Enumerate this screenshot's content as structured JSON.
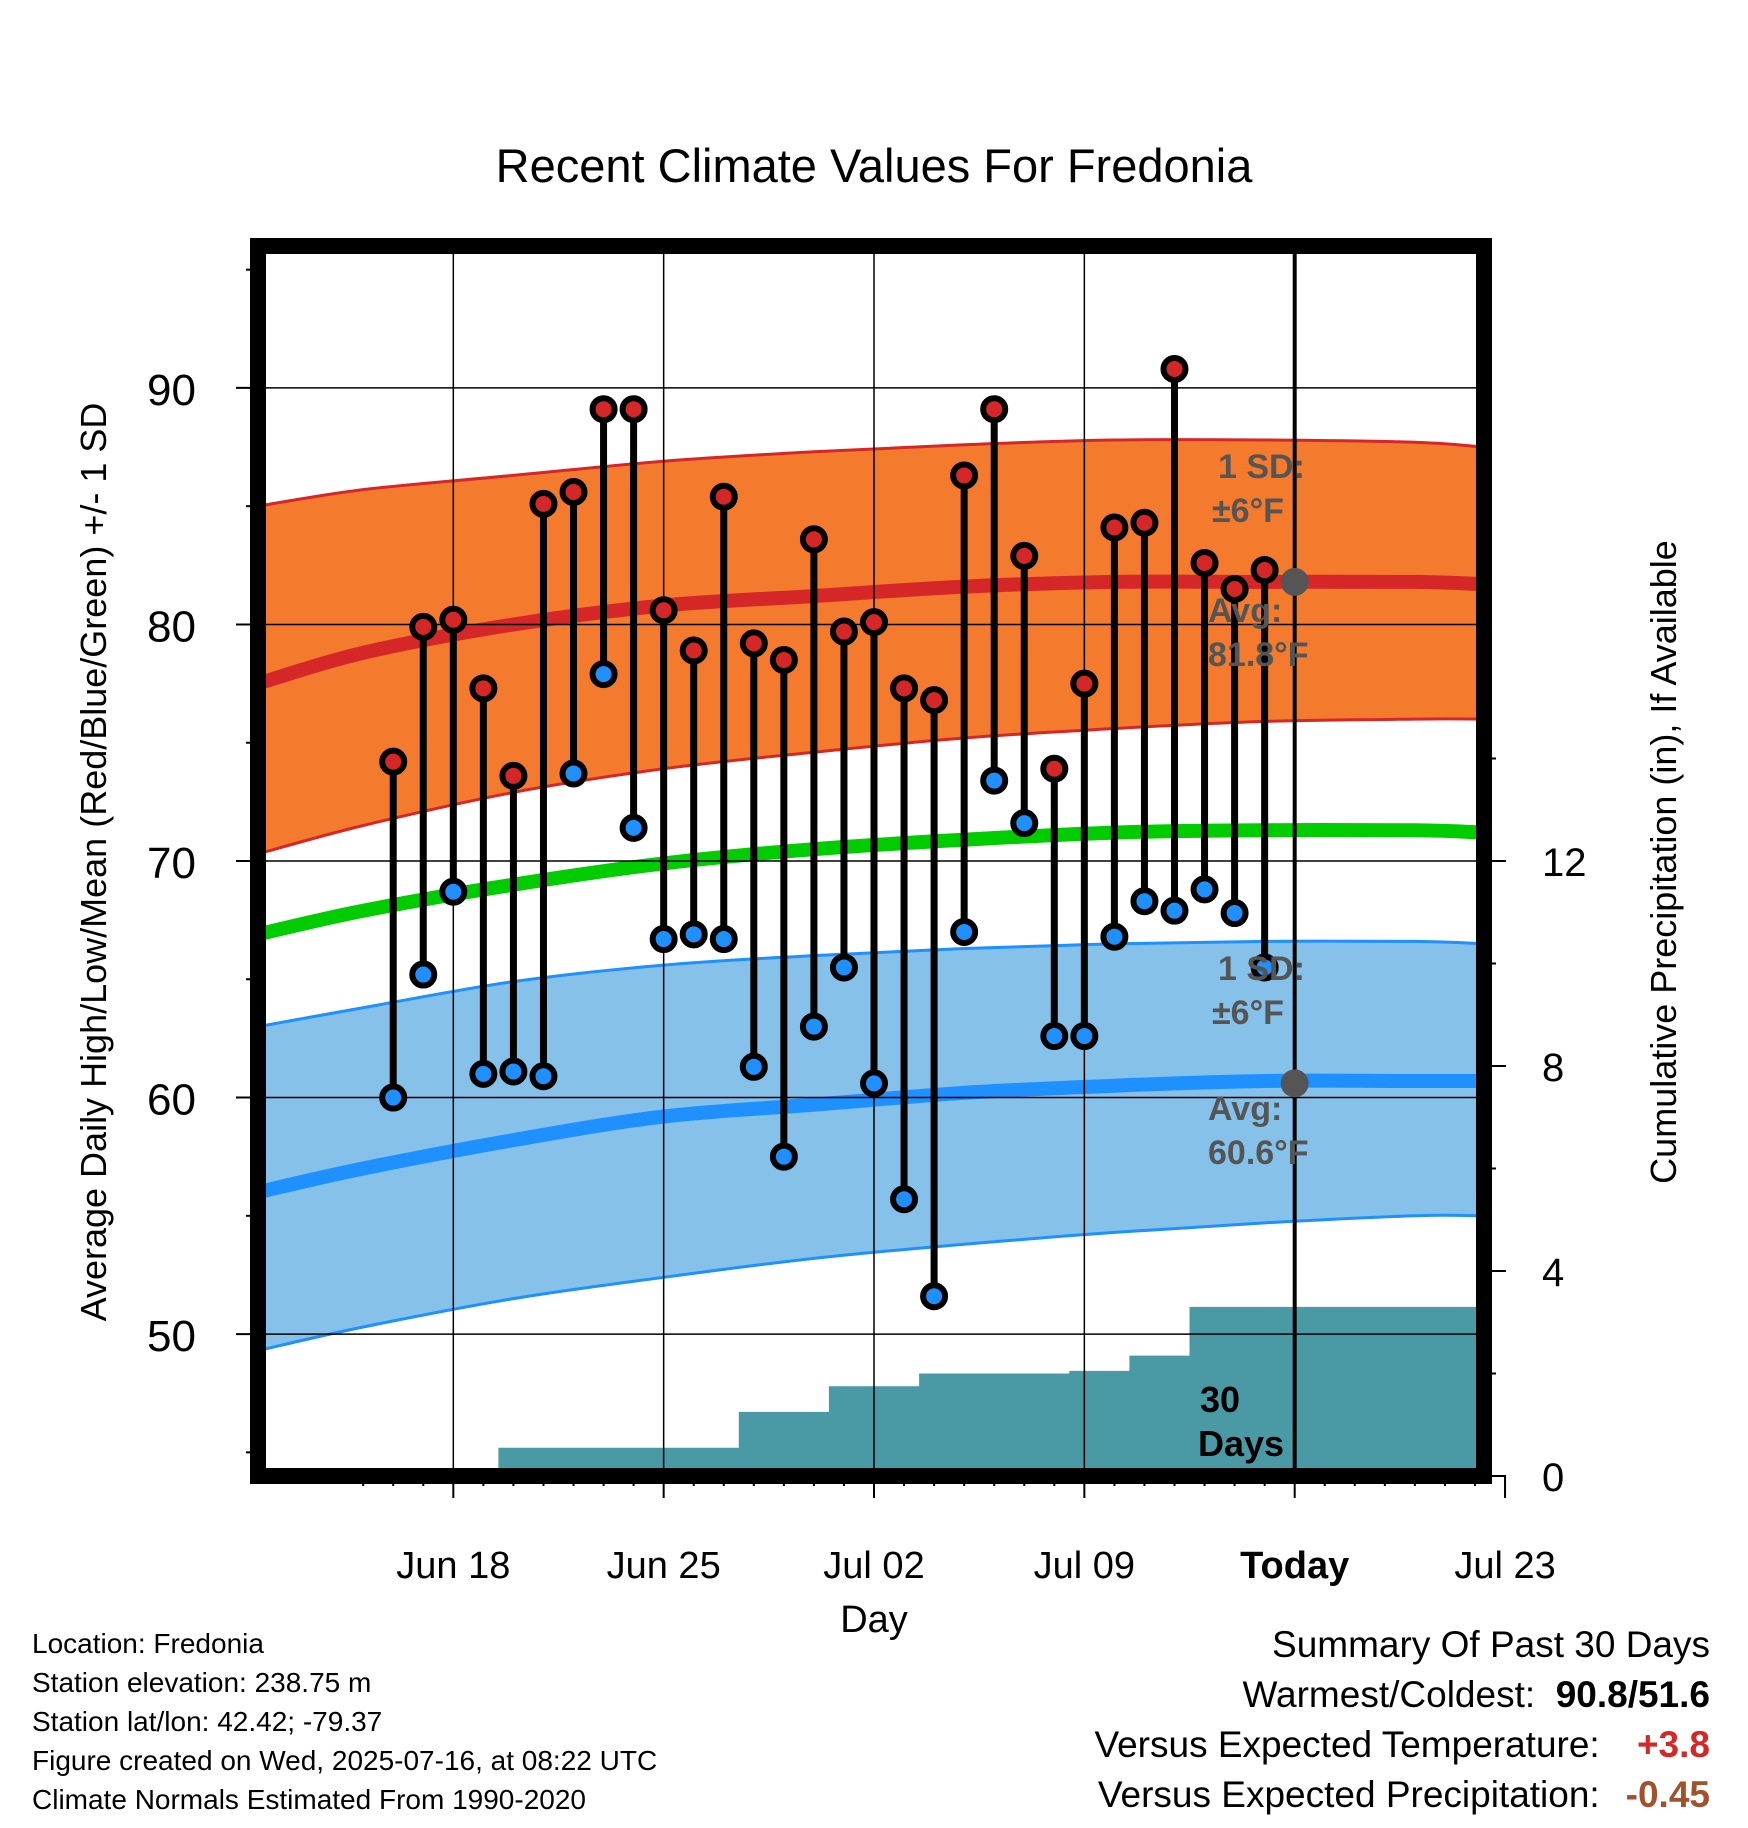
{
  "chart_data": {
    "type": "line",
    "title": "Recent Climate Values For Fredonia",
    "xlabel": "Day",
    "ylabel": "Average Daily High/Low/Mean (Red/Blue/Green) +/- 1 SD",
    "y2label": "Cumulative Precipitation (in), If Available",
    "x_range_days": [
      -3.5,
      37.3
    ],
    "ylim": [
      44,
      96
    ],
    "y2lim": [
      0,
      24
    ],
    "x_ticks": [
      {
        "day": 3,
        "label": "Jun 18"
      },
      {
        "day": 10,
        "label": "Jun 25"
      },
      {
        "day": 17,
        "label": "Jul 02"
      },
      {
        "day": 24,
        "label": "Jul 09"
      },
      {
        "day": 31,
        "label": "Today"
      },
      {
        "day": 38,
        "label": "Jul 23"
      }
    ],
    "y_ticks": [
      50,
      60,
      70,
      80,
      90
    ],
    "y2_ticks": [
      0,
      4,
      8,
      12
    ],
    "observed": {
      "days": [
        1,
        2,
        3,
        4,
        5,
        6,
        7,
        8,
        9,
        10,
        11,
        12,
        13,
        14,
        15,
        16,
        17,
        18,
        19,
        20,
        21,
        22,
        23,
        24,
        25,
        26,
        27,
        28,
        29,
        30
      ],
      "high": [
        74.2,
        79.9,
        80.2,
        77.3,
        73.6,
        85.1,
        85.6,
        89.1,
        89.1,
        80.6,
        78.9,
        85.4,
        79.2,
        78.5,
        83.6,
        79.7,
        80.1,
        77.3,
        76.8,
        86.3,
        89.1,
        82.9,
        73.9,
        77.5,
        84.1,
        84.3,
        90.8,
        82.6,
        81.5,
        82.3
      ],
      "low": [
        60.0,
        65.2,
        68.7,
        61.0,
        61.1,
        60.9,
        73.7,
        77.9,
        71.4,
        66.7,
        66.9,
        66.7,
        61.3,
        57.5,
        63.0,
        65.5,
        60.6,
        55.7,
        51.6,
        67.0,
        73.4,
        71.6,
        62.6,
        62.6,
        66.8,
        68.3,
        67.9,
        68.8,
        67.8,
        65.5
      ]
    },
    "normals": {
      "days": [
        -3.5,
        0,
        5,
        10,
        15,
        20,
        25,
        30,
        35,
        37.3
      ],
      "avg_high": [
        77.5,
        78.8,
        80.0,
        80.8,
        81.2,
        81.6,
        81.8,
        81.8,
        81.8,
        81.7
      ],
      "high_plus_sd": [
        85.0,
        85.7,
        86.3,
        86.9,
        87.3,
        87.6,
        87.8,
        87.8,
        87.7,
        87.5
      ],
      "high_minus_sd": [
        70.3,
        71.5,
        72.9,
        73.9,
        74.6,
        75.2,
        75.6,
        75.9,
        76.0,
        76.0
      ],
      "avg_mean": [
        66.9,
        67.9,
        69.0,
        69.9,
        70.5,
        70.9,
        71.2,
        71.3,
        71.3,
        71.2
      ],
      "avg_low": [
        56.0,
        57.0,
        58.2,
        59.2,
        59.7,
        60.2,
        60.5,
        60.7,
        60.7,
        60.7
      ],
      "low_plus_sd": [
        63.0,
        63.8,
        64.9,
        65.6,
        66.0,
        66.3,
        66.5,
        66.6,
        66.6,
        66.5
      ],
      "low_minus_sd": [
        49.3,
        50.3,
        51.5,
        52.4,
        53.2,
        53.8,
        54.3,
        54.7,
        55.0,
        55.0
      ]
    },
    "precipitation": {
      "days": [
        3.5,
        4.5,
        8.5,
        9.5,
        10.5,
        11.5,
        12.5,
        13.5,
        14.5,
        15.5,
        16.5,
        17.5,
        18.5,
        19.5,
        20.5,
        21.5,
        22.5,
        23.5,
        24.5,
        25.5,
        26.5,
        27.5,
        28.5,
        29.5,
        30.5,
        31.5,
        32.5,
        33.5,
        34.5,
        35.5,
        36.5
      ],
      "cumulative_in": [
        0.0,
        0.55,
        0.55,
        0.55,
        0.55,
        0.55,
        1.25,
        1.25,
        1.25,
        1.75,
        1.75,
        1.75,
        2.0,
        2.0,
        2.0,
        2.0,
        2.0,
        2.05,
        2.05,
        2.35,
        2.35,
        3.3,
        3.3,
        3.3,
        3.3,
        3.3,
        3.3,
        3.3,
        3.3,
        3.3,
        3.3
      ]
    },
    "today_markers": {
      "avg_high": 81.8,
      "avg_low": 60.6
    },
    "annotations": {
      "high_sd_1": "1 SD:",
      "high_sd_2": "±6°F",
      "high_avg_1": "Avg:",
      "high_avg_2": "81.8°F",
      "low_sd_1": "1 SD:",
      "low_sd_2": "±6°F",
      "low_avg_1": "Avg:",
      "low_avg_2": "60.6°F",
      "window_1": "30",
      "window_2": "Days"
    },
    "colors": {
      "high_band": "#f47b2e",
      "high_line": "#d62728",
      "low_band": "#85c1e9",
      "low_line": "#1e90ff",
      "mean_line": "#00cc00",
      "precip": "#4a9aa5",
      "high_dot": "#d62728",
      "low_dot": "#1e90ff",
      "annotation": "#555555",
      "today_dot": "#555555"
    }
  },
  "footer": {
    "location": "Location: Fredonia",
    "elevation": "Station elevation: 238.75 m",
    "latlon": "Station lat/lon: 42.42; -79.37",
    "created": "Figure created on Wed, 2025-07-16, at 08:22 UTC",
    "normals": "Climate Normals Estimated From 1990-2020"
  },
  "summary": {
    "title": "Summary Of Past 30 Days",
    "warmest_label": "Warmest/Coldest:",
    "warmest_value": "90.8/51.6",
    "temp_label": "Versus Expected Temperature:",
    "temp_value": "+3.8",
    "temp_color": "#d62728",
    "precip_label": "Versus Expected Precipitation:",
    "precip_value": "-0.45",
    "precip_color": "#a0522d"
  }
}
